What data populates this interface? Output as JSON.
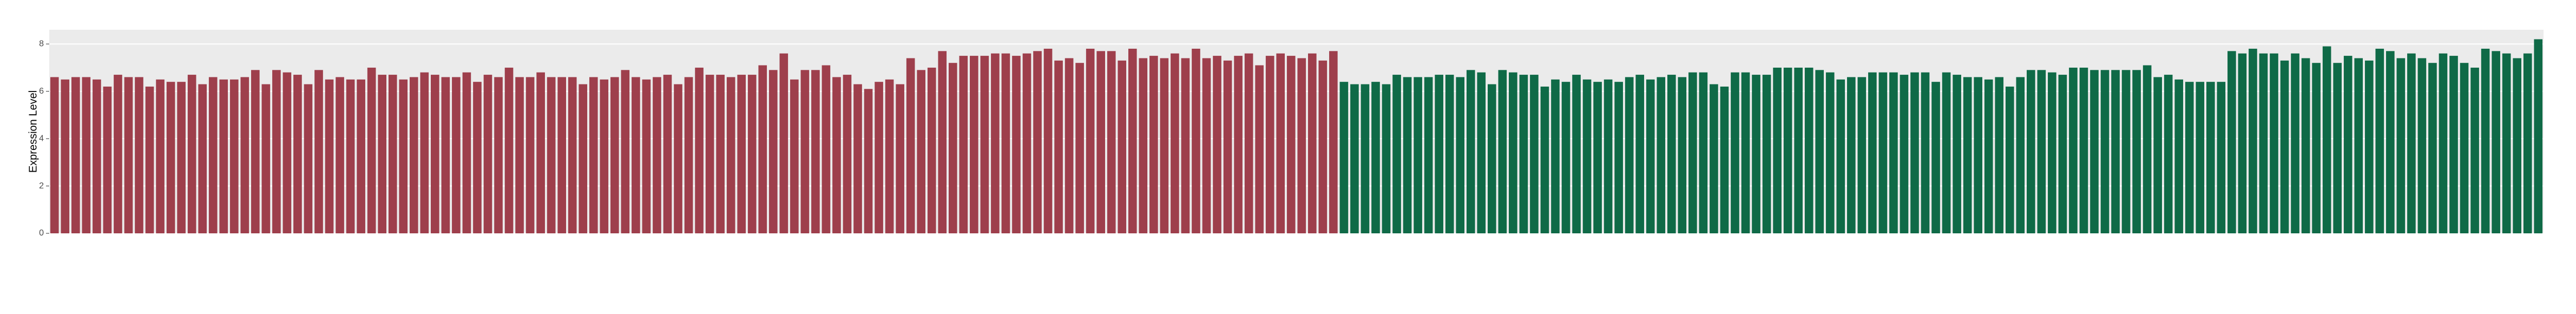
{
  "chart_data": {
    "type": "bar",
    "y_label": "Expression Level",
    "ylim": [
      0,
      8.6
    ],
    "yticks": [
      0,
      2,
      4,
      6,
      8
    ],
    "grid": true,
    "series": [
      {
        "color": "#9e3f4c",
        "values": [
          6.6,
          6.5,
          6.6,
          6.6,
          6.5,
          6.2,
          6.7,
          6.6,
          6.6,
          6.2,
          6.5,
          6.4,
          6.4,
          6.7,
          6.3,
          6.6,
          6.5,
          6.5,
          6.6,
          6.9,
          6.3,
          6.9,
          6.8,
          6.7,
          6.3,
          6.9,
          6.5,
          6.6,
          6.5,
          6.5,
          7.0,
          6.7,
          6.7,
          6.5,
          6.6,
          6.8,
          6.7,
          6.6,
          6.6,
          6.8,
          6.4,
          6.7,
          6.6,
          7.0,
          6.6,
          6.6,
          6.8,
          6.6,
          6.6,
          6.6,
          6.3,
          6.6,
          6.5,
          6.6,
          6.9,
          6.6,
          6.5,
          6.6,
          6.7,
          6.3,
          6.6,
          7.0,
          6.7,
          6.7,
          6.6,
          6.7,
          6.7,
          7.1,
          6.9,
          7.6,
          6.5,
          6.9,
          6.9,
          7.1,
          6.6,
          6.7,
          6.3,
          6.1,
          6.4,
          6.5,
          6.3,
          7.4,
          6.9,
          7.0,
          7.7,
          7.2,
          7.5,
          7.5,
          7.5,
          7.6,
          7.6,
          7.5,
          7.6,
          7.7,
          7.8,
          7.3,
          7.4,
          7.2,
          7.8,
          7.7,
          7.7,
          7.3,
          7.8,
          7.4,
          7.5,
          7.4,
          7.6,
          7.4,
          7.8,
          7.4,
          7.5,
          7.3,
          7.5,
          7.6,
          7.1,
          7.5,
          7.6,
          7.5,
          7.4,
          7.6,
          7.3,
          7.7
        ]
      },
      {
        "color": "#0f6a47",
        "values": [
          6.4,
          6.3,
          6.3,
          6.4,
          6.3,
          6.7,
          6.6,
          6.6,
          6.6,
          6.7,
          6.7,
          6.6,
          6.9,
          6.8,
          6.3,
          6.9,
          6.8,
          6.7,
          6.7,
          6.2,
          6.5,
          6.4,
          6.7,
          6.5,
          6.4,
          6.5,
          6.4,
          6.6,
          6.7,
          6.5,
          6.6,
          6.7,
          6.6,
          6.8,
          6.8,
          6.3,
          6.2,
          6.8,
          6.8,
          6.7,
          6.7,
          7.0,
          7.0,
          7.0,
          7.0,
          6.9,
          6.8,
          6.5,
          6.6,
          6.6,
          6.8,
          6.8,
          6.8,
          6.7,
          6.8,
          6.8,
          6.4,
          6.8,
          6.7,
          6.6,
          6.6,
          6.5,
          6.6,
          6.2,
          6.6,
          6.9,
          6.9,
          6.8,
          6.7,
          7.0,
          7.0,
          6.9,
          6.9,
          6.9,
          6.9,
          6.9,
          7.1,
          6.6,
          6.7,
          6.5,
          6.4,
          6.4,
          6.4,
          6.4,
          7.7,
          7.6,
          7.8,
          7.6,
          7.6,
          7.3,
          7.6,
          7.4,
          7.2,
          7.9,
          7.2,
          7.5,
          7.4,
          7.3,
          7.8,
          7.7,
          7.4,
          7.6,
          7.4,
          7.2,
          7.6,
          7.5,
          7.2,
          7.0,
          7.8,
          7.7,
          7.6,
          7.4,
          7.6,
          8.2
        ]
      }
    ]
  }
}
